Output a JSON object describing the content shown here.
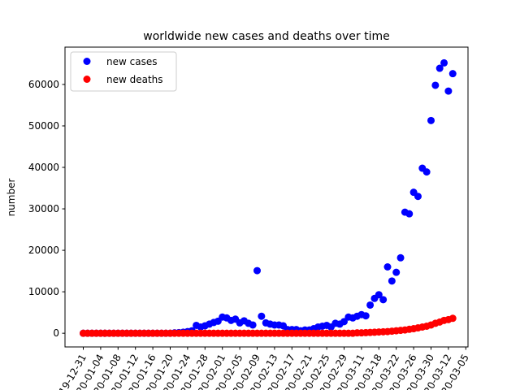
{
  "chart_data": {
    "type": "scatter",
    "title": "worldwide new cases and deaths over time",
    "xlabel": "",
    "ylabel": "number",
    "ylim": [
      -3300,
      69000
    ],
    "yticks": [
      0,
      10000,
      20000,
      30000,
      40000,
      50000,
      60000
    ],
    "ytick_labels": [
      "0",
      "10000",
      "20000",
      "30000",
      "40000",
      "50000",
      "60000"
    ],
    "xtick_labels": [
      "2019-12-31",
      "2020-01-04",
      "2020-01-08",
      "2020-01-12",
      "2020-01-16",
      "2020-01-20",
      "2020-01-24",
      "2020-01-28",
      "2020-02-01",
      "2020-02-05",
      "2020-02-09",
      "2020-02-13",
      "2020-02-17",
      "2020-02-21",
      "2020-02-25",
      "2020-02-29",
      "2020-03-11",
      "2020-03-18",
      "2020-03-22",
      "2020-03-26",
      "2020-03-30",
      "2020-03-12",
      "2020-03-05"
    ],
    "xtick_every": 4,
    "grid": false,
    "legend_position": "upper-left",
    "colors": {
      "new_cases": "#0000ff",
      "new_deaths": "#ff0000"
    },
    "series": [
      {
        "name": "new cases",
        "values": [
          0,
          0,
          0,
          0,
          0,
          0,
          0,
          0,
          0,
          0,
          0,
          0,
          0,
          0,
          0,
          0,
          0,
          0,
          0,
          0,
          0,
          100,
          150,
          250,
          400,
          600,
          1900,
          1500,
          1800,
          2200,
          2600,
          2900,
          3900,
          3700,
          3100,
          3400,
          2500,
          3000,
          2400,
          2000,
          15100,
          4100,
          2500,
          2200,
          2000,
          2000,
          1800,
          900,
          900,
          900,
          600,
          800,
          800,
          1100,
          1500,
          1700,
          1900,
          1500,
          2400,
          2200,
          2800,
          3900,
          3700,
          4100,
          4500,
          4200,
          6800,
          8400,
          9300,
          8100,
          16000,
          12600,
          14700,
          18200,
          29200,
          28800,
          34000,
          33000,
          39800,
          38900,
          51300,
          59800,
          63900,
          65200,
          58400,
          62600
        ]
      },
      {
        "name": "new deaths",
        "values": [
          0,
          0,
          0,
          0,
          0,
          0,
          0,
          0,
          0,
          0,
          0,
          0,
          0,
          0,
          0,
          0,
          0,
          0,
          0,
          0,
          0,
          0,
          0,
          0,
          0,
          0,
          0,
          0,
          0,
          0,
          0,
          0,
          0,
          0,
          0,
          0,
          0,
          0,
          0,
          0,
          0,
          0,
          0,
          0,
          0,
          0,
          0,
          0,
          0,
          0,
          0,
          0,
          0,
          0,
          0,
          0,
          0,
          0,
          0,
          0,
          0,
          0,
          0,
          100,
          100,
          150,
          200,
          250,
          300,
          350,
          400,
          500,
          600,
          700,
          800,
          950,
          1100,
          1300,
          1500,
          1700,
          2000,
          2400,
          2700,
          3100,
          3300,
          3600
        ]
      }
    ]
  }
}
